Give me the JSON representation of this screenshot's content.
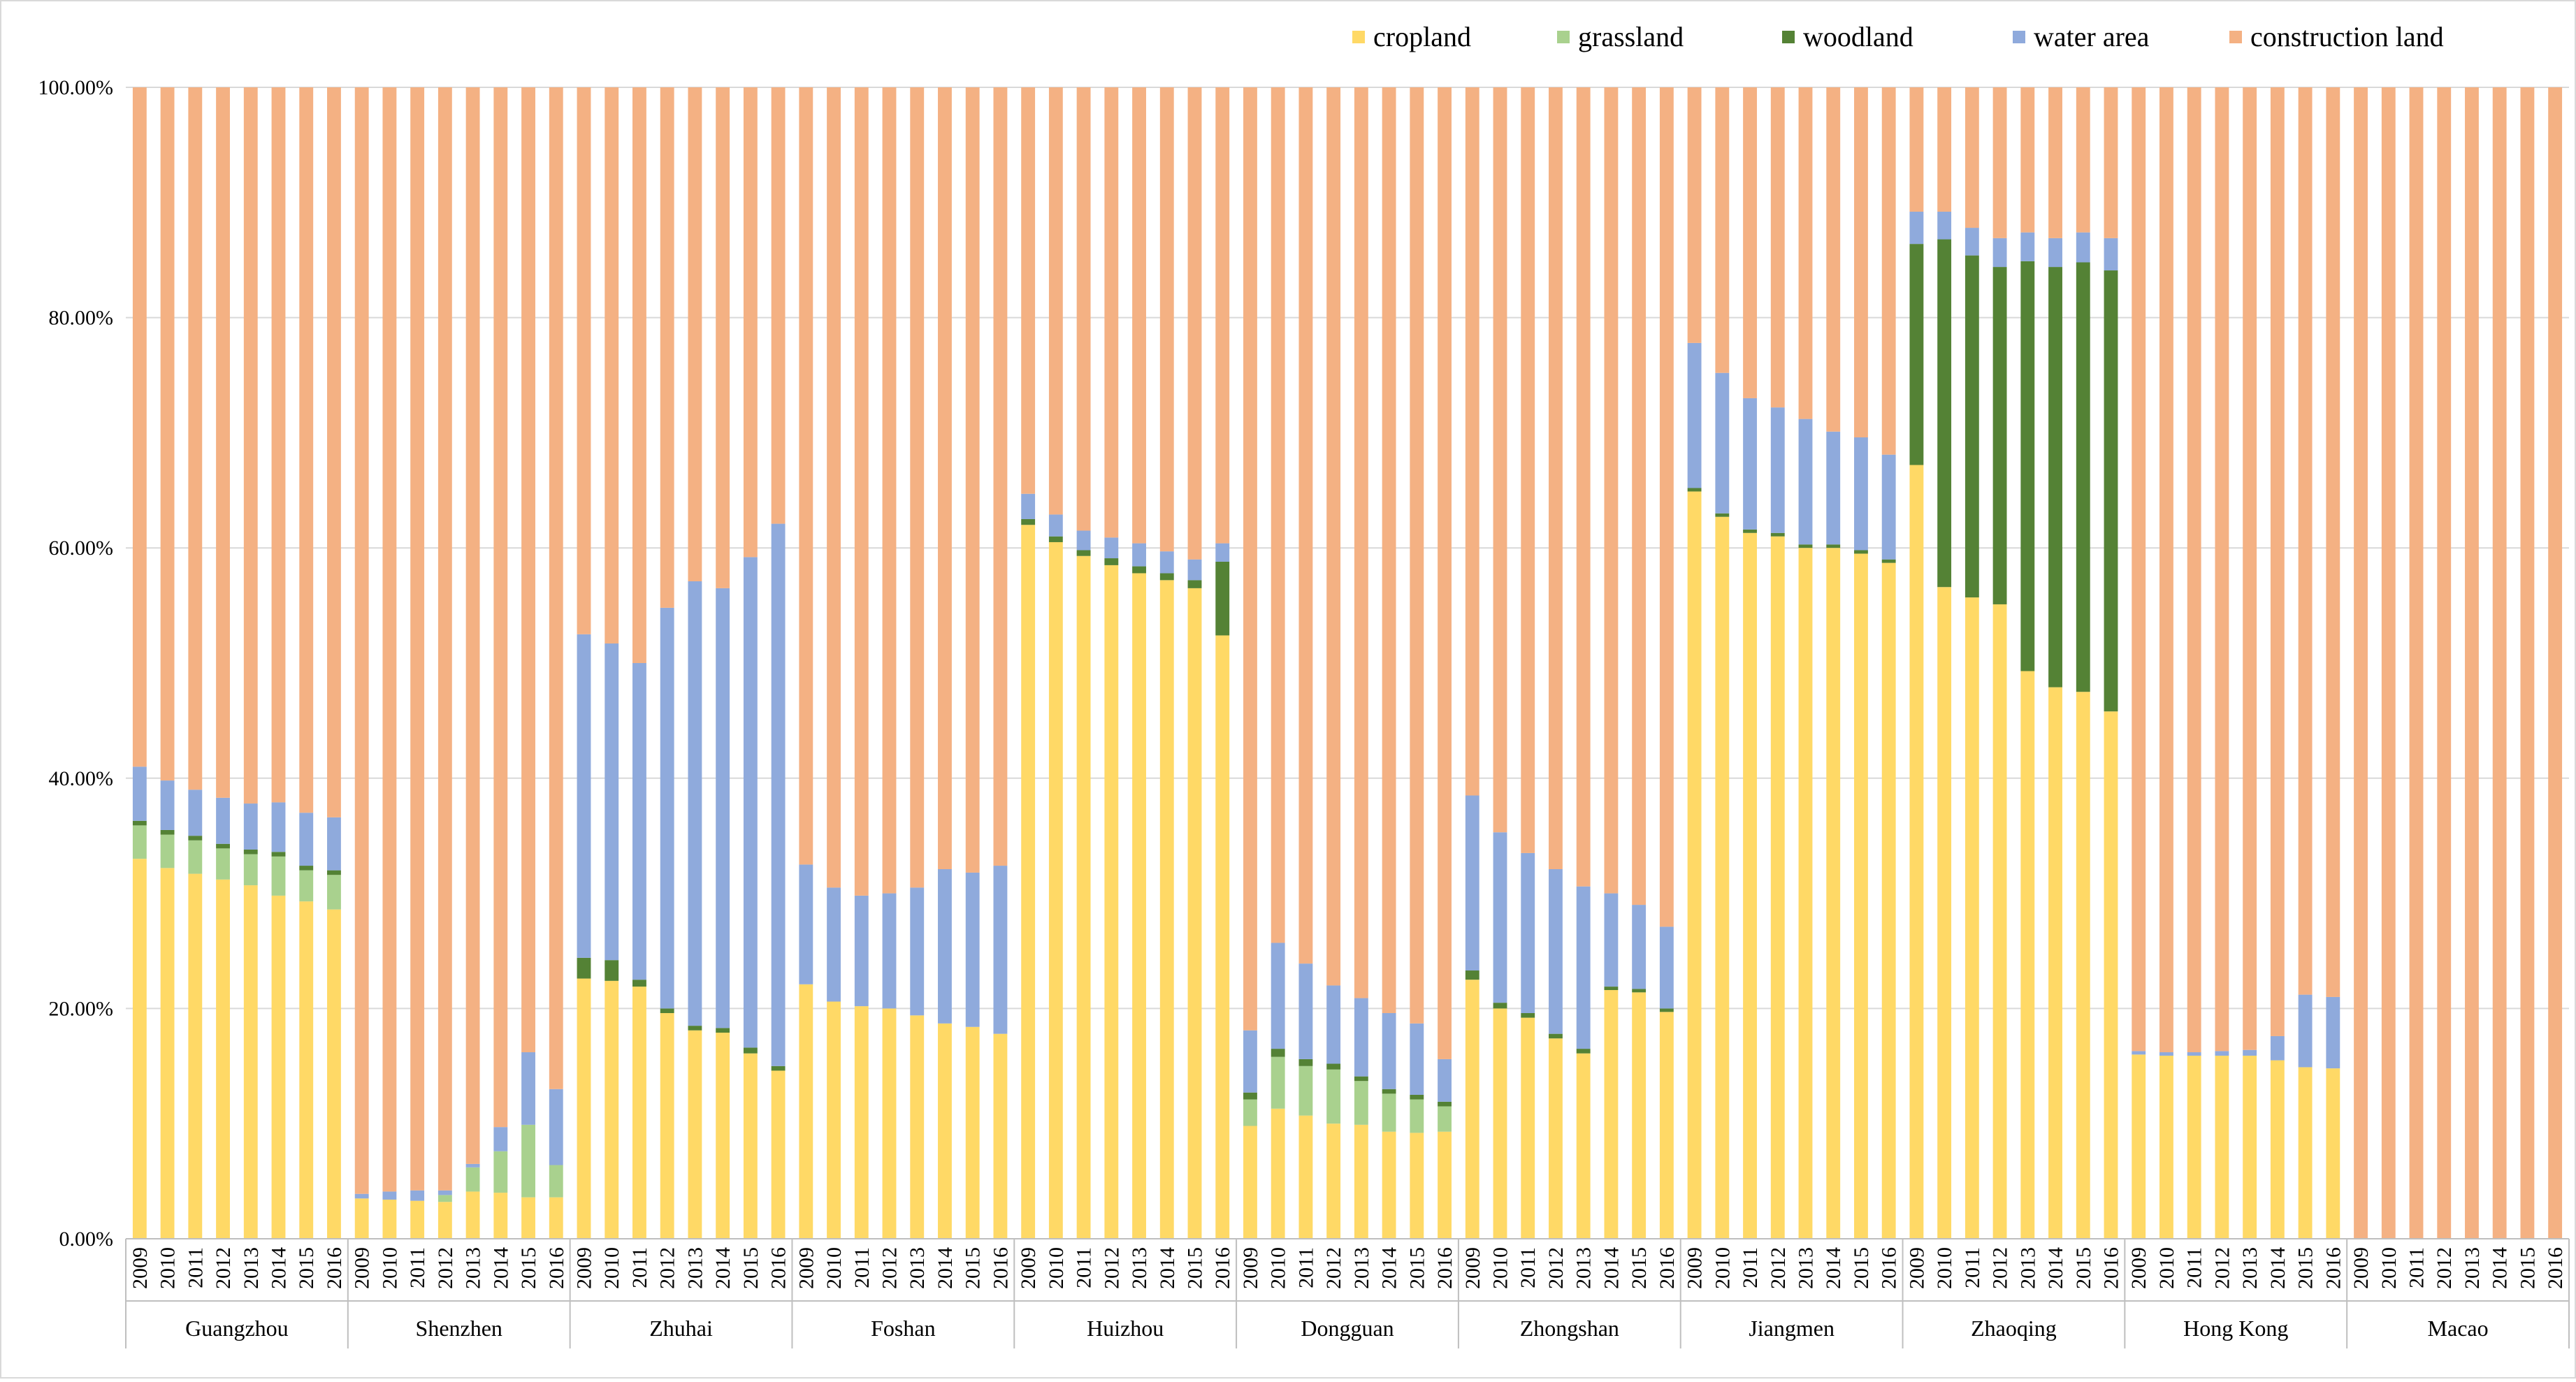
{
  "chart_data": {
    "type": "stacked-bar-100",
    "title": "",
    "xlabel": "",
    "ylabel": "",
    "ylim": [
      0,
      100
    ],
    "y_ticks": [
      "0.00%",
      "20.00%",
      "40.00%",
      "60.00%",
      "80.00%",
      "100.00%"
    ],
    "grid": true,
    "legend_position": "top-right",
    "series": [
      {
        "name": "cropland",
        "color": "#FFD966"
      },
      {
        "name": "grassland",
        "color": "#A9D18E"
      },
      {
        "name": "woodland",
        "color": "#548235"
      },
      {
        "name": "water area",
        "color": "#8FAADC"
      },
      {
        "name": "construction land",
        "color": "#F4B183"
      }
    ],
    "years": [
      "2009",
      "2010",
      "2011",
      "2012",
      "2013",
      "2014",
      "2015",
      "2016"
    ],
    "cities": [
      {
        "name": "Guangzhou",
        "cropland": [
          33.0,
          32.2,
          31.7,
          31.2,
          30.7,
          29.8,
          29.3,
          28.6
        ],
        "grassland": [
          2.9,
          2.9,
          2.9,
          2.7,
          2.7,
          3.4,
          2.7,
          3.0
        ],
        "woodland": [
          0.4,
          0.4,
          0.4,
          0.4,
          0.4,
          0.4,
          0.4,
          0.4
        ],
        "water": [
          4.7,
          4.3,
          4.0,
          4.0,
          4.0,
          4.3,
          4.6,
          4.6
        ]
      },
      {
        "name": "Shenzhen",
        "cropland": [
          3.5,
          3.4,
          3.3,
          3.2,
          4.1,
          4.0,
          3.6,
          3.6
        ],
        "grassland": [
          0.0,
          0.0,
          0.0,
          0.6,
          2.1,
          3.6,
          6.3,
          2.8
        ],
        "woodland": [
          0.0,
          0.0,
          0.0,
          0.0,
          0.0,
          0.0,
          0.0,
          0.0
        ],
        "water": [
          0.4,
          0.7,
          0.9,
          0.4,
          0.3,
          2.1,
          6.3,
          6.6
        ]
      },
      {
        "name": "Zhuhai",
        "cropland": [
          22.6,
          22.4,
          21.9,
          19.6,
          18.1,
          17.9,
          16.1,
          14.6
        ],
        "grassland": [
          0.0,
          0.0,
          0.0,
          0.0,
          0.0,
          0.0,
          0.0,
          0.0
        ],
        "woodland": [
          1.8,
          1.8,
          0.6,
          0.4,
          0.4,
          0.4,
          0.5,
          0.4
        ],
        "water": [
          28.1,
          27.5,
          27.5,
          34.8,
          38.6,
          38.2,
          42.6,
          47.1
        ]
      },
      {
        "name": "Foshan",
        "cropland": [
          22.1,
          20.6,
          20.2,
          20.0,
          19.4,
          18.7,
          18.4,
          17.8
        ],
        "grassland": [
          0.0,
          0.0,
          0.0,
          0.0,
          0.0,
          0.0,
          0.0,
          0.0
        ],
        "woodland": [
          0.0,
          0.0,
          0.0,
          0.0,
          0.0,
          0.0,
          0.0,
          0.0
        ],
        "water": [
          10.4,
          9.9,
          9.6,
          10.0,
          11.1,
          13.4,
          13.4,
          14.6
        ]
      },
      {
        "name": "Huizhou",
        "cropland": [
          62.0,
          60.5,
          59.3,
          58.5,
          57.8,
          57.2,
          56.5,
          52.4
        ],
        "grassland": [
          0.0,
          0.0,
          0.0,
          0.0,
          0.0,
          0.0,
          0.0,
          0.0
        ],
        "woodland": [
          0.5,
          0.5,
          0.5,
          0.6,
          0.6,
          0.6,
          0.7,
          6.4
        ],
        "water": [
          2.2,
          1.9,
          1.7,
          1.8,
          2.0,
          1.9,
          1.8,
          1.6
        ]
      },
      {
        "name": "Dongguan",
        "cropland": [
          9.8,
          11.3,
          10.7,
          10.0,
          9.9,
          9.3,
          9.2,
          9.3
        ],
        "grassland": [
          2.3,
          4.5,
          4.3,
          4.7,
          3.8,
          3.3,
          2.9,
          2.2
        ],
        "woodland": [
          0.6,
          0.7,
          0.6,
          0.5,
          0.4,
          0.4,
          0.4,
          0.4
        ],
        "water": [
          5.4,
          9.2,
          8.3,
          6.8,
          6.8,
          6.6,
          6.2,
          3.7
        ]
      },
      {
        "name": "Zhongshan",
        "cropland": [
          22.5,
          20.0,
          19.2,
          17.4,
          16.1,
          21.6,
          21.4,
          19.7
        ],
        "grassland": [
          0.0,
          0.0,
          0.0,
          0.0,
          0.0,
          0.0,
          0.0,
          0.0
        ],
        "woodland": [
          0.8,
          0.5,
          0.4,
          0.4,
          0.4,
          0.3,
          0.3,
          0.3
        ],
        "water": [
          15.2,
          14.8,
          13.9,
          14.3,
          14.1,
          8.1,
          7.3,
          7.1
        ]
      },
      {
        "name": "Jiangmen",
        "cropland": [
          64.9,
          62.7,
          61.3,
          61.0,
          60.0,
          60.0,
          59.5,
          58.7
        ],
        "grassland": [
          0.0,
          0.0,
          0.0,
          0.0,
          0.0,
          0.0,
          0.0,
          0.0
        ],
        "woodland": [
          0.3,
          0.3,
          0.3,
          0.3,
          0.3,
          0.3,
          0.3,
          0.3
        ],
        "water": [
          12.6,
          12.2,
          11.4,
          10.9,
          10.9,
          9.8,
          9.8,
          9.1
        ]
      },
      {
        "name": "Zhaoqing",
        "cropland": [
          67.2,
          56.6,
          55.7,
          55.1,
          49.3,
          47.9,
          47.5,
          45.8
        ],
        "grassland": [
          0.0,
          0.0,
          0.0,
          0.0,
          0.0,
          0.0,
          0.0,
          0.0
        ],
        "woodland": [
          19.2,
          30.2,
          29.7,
          29.3,
          35.6,
          36.5,
          37.3,
          38.3
        ],
        "water": [
          2.8,
          2.4,
          2.4,
          2.5,
          2.5,
          2.5,
          2.6,
          2.8
        ]
      },
      {
        "name": "Hong Kong",
        "cropland": [
          16.0,
          15.9,
          15.9,
          15.9,
          15.9,
          15.5,
          14.9,
          14.8
        ],
        "grassland": [
          0.0,
          0.0,
          0.0,
          0.0,
          0.0,
          0.0,
          0.0,
          0.0
        ],
        "woodland": [
          0.0,
          0.0,
          0.0,
          0.0,
          0.0,
          0.0,
          0.0,
          0.0
        ],
        "water": [
          0.3,
          0.3,
          0.3,
          0.4,
          0.5,
          2.1,
          6.3,
          6.2
        ]
      },
      {
        "name": "Macao",
        "cropland": [
          0,
          0,
          0,
          0,
          0,
          0,
          0,
          0
        ],
        "grassland": [
          0,
          0,
          0,
          0,
          0,
          0,
          0,
          0
        ],
        "woodland": [
          0,
          0,
          0,
          0,
          0,
          0,
          0,
          0
        ],
        "water": [
          0,
          0,
          0,
          0,
          0,
          0,
          0,
          0
        ]
      }
    ]
  }
}
